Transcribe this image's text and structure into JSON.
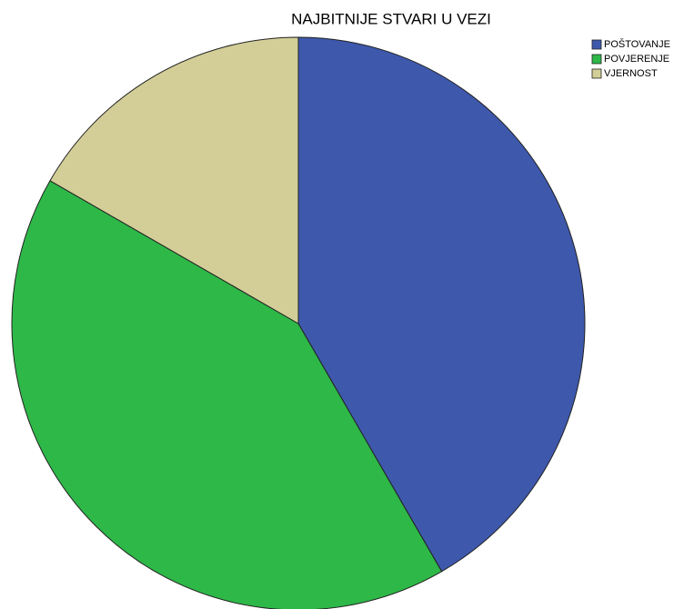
{
  "chart_data": {
    "type": "pie",
    "title": "NAJBITNIJE STVARI U VEZI",
    "categories": [
      "POŠTOVANJE",
      "POVJERENJE",
      "VJERNOST"
    ],
    "values": [
      41.7,
      41.7,
      16.7
    ],
    "colors": [
      "#3e58ac",
      "#2eb848",
      "#d3ce97"
    ],
    "legend": "top-right"
  }
}
